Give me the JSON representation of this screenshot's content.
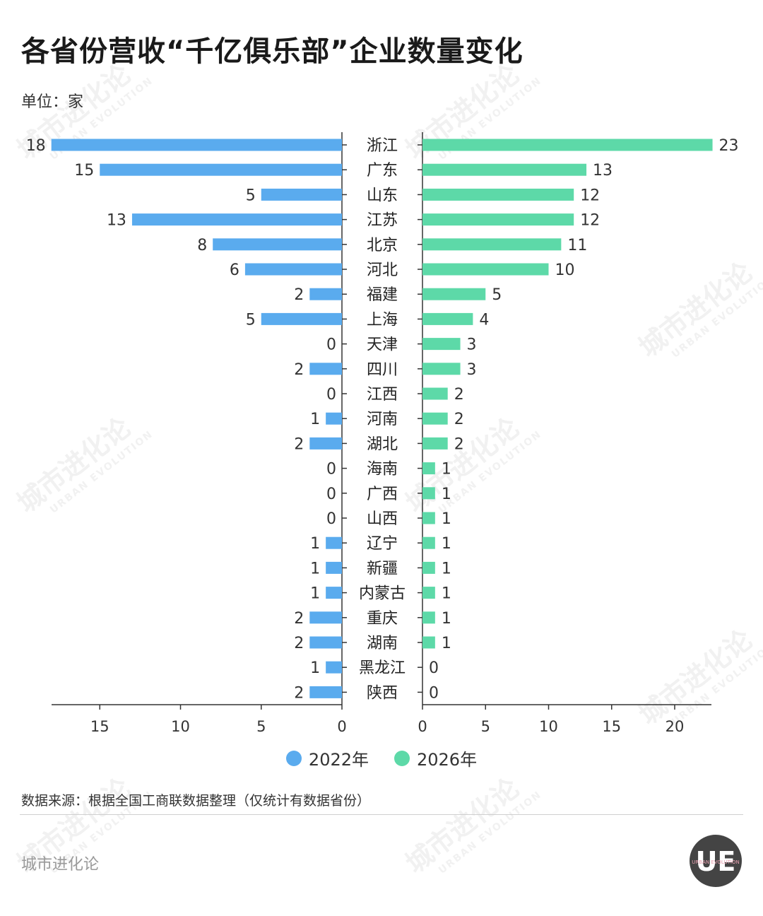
{
  "title": "各省份营收“千亿俱乐部”企业数量变化",
  "unit": "单位：家",
  "source": "数据来源：根据全国工商联数据整理（仅统计有数据省份）",
  "brand": "城市进化论",
  "watermark": {
    "main": "城市进化论",
    "sub": "URBAN EVOLUTION"
  },
  "logo": {
    "mark": "UE",
    "text": "URBAN EVOLUTION"
  },
  "colors": {
    "series2022": "#5aabee",
    "series2026": "#5dd9a8",
    "axis": "#333333"
  },
  "legend": [
    {
      "label": "2022年",
      "color": "#5aabee"
    },
    {
      "label": "2026年",
      "color": "#5dd9a8"
    }
  ],
  "chart_data": {
    "type": "bar",
    "orientation": "horizontal-butterfly",
    "categories": [
      "浙江",
      "广东",
      "山东",
      "江苏",
      "北京",
      "河北",
      "福建",
      "上海",
      "天津",
      "四川",
      "江西",
      "河南",
      "湖北",
      "海南",
      "广西",
      "山西",
      "辽宁",
      "新疆",
      "内蒙古",
      "重庆",
      "湖南",
      "黑龙江",
      "陕西"
    ],
    "series": [
      {
        "name": "2022年",
        "side": "left",
        "values": [
          18,
          15,
          5,
          13,
          8,
          6,
          2,
          5,
          0,
          2,
          0,
          1,
          2,
          0,
          0,
          0,
          1,
          1,
          1,
          2,
          2,
          1,
          2
        ]
      },
      {
        "name": "2026年",
        "side": "right",
        "values": [
          23,
          13,
          12,
          12,
          11,
          10,
          5,
          4,
          3,
          3,
          2,
          2,
          2,
          1,
          1,
          1,
          1,
          1,
          1,
          1,
          1,
          0,
          0
        ]
      }
    ],
    "left_axis": {
      "ticks": [
        15,
        10,
        5,
        0
      ],
      "range": [
        0,
        18
      ]
    },
    "right_axis": {
      "ticks": [
        0,
        5,
        10,
        15,
        20
      ],
      "range": [
        0,
        23
      ]
    },
    "legend_position": "bottom-center"
  }
}
